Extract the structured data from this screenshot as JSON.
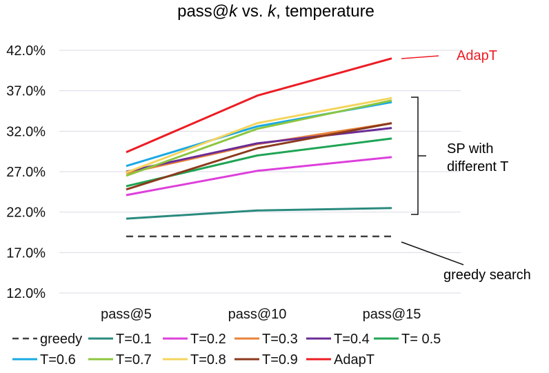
{
  "chart_data": {
    "type": "line",
    "title": "pass@k vs. k, temperature",
    "title_parts": [
      "pass@",
      "k",
      " vs. ",
      "k",
      ", temperature"
    ],
    "xlabel": "",
    "ylabel": "",
    "categories": [
      "pass@5",
      "pass@10",
      "pass@15"
    ],
    "ylim": [
      12.0,
      42.0
    ],
    "yticks": [
      12.0,
      17.0,
      22.0,
      27.0,
      32.0,
      37.0,
      42.0
    ],
    "ytick_labels": [
      "12.0%",
      "17.0%",
      "22.0%",
      "27.0%",
      "32.0%",
      "37.0%",
      "42.0%"
    ],
    "grid": true,
    "series": [
      {
        "name": "greedy",
        "legend": "greedy",
        "color": "#404040",
        "dashed": true,
        "values": [
          19.0,
          19.0,
          19.0
        ]
      },
      {
        "name": "T=0.1",
        "legend": "T=0.1",
        "color": "#2a8a7e",
        "values": [
          21.2,
          22.2,
          22.5
        ]
      },
      {
        "name": "T=0.2",
        "legend": "T=0.2",
        "color": "#dd3fdb",
        "values": [
          24.1,
          27.1,
          28.8
        ]
      },
      {
        "name": "T=0.3",
        "legend": "T=0.3",
        "color": "#e8823a",
        "values": [
          26.8,
          30.4,
          33.0
        ]
      },
      {
        "name": "T=0.4",
        "legend": "T=0.4",
        "color": "#6a2b96",
        "values": [
          27.0,
          30.5,
          32.4
        ]
      },
      {
        "name": "T= 0.5",
        "legend": "T= 0.5",
        "color": "#1fa454",
        "values": [
          25.2,
          29.0,
          31.1
        ]
      },
      {
        "name": "T=0.6",
        "legend": "T=0.6",
        "color": "#1aa9e3",
        "values": [
          27.7,
          32.6,
          35.6
        ]
      },
      {
        "name": "T=0.7",
        "legend": "T=0.7",
        "color": "#8cc63f",
        "values": [
          26.5,
          32.3,
          35.8
        ]
      },
      {
        "name": "T=0.8",
        "legend": "T=0.8",
        "color": "#f4d45c",
        "values": [
          26.9,
          33.0,
          36.1
        ]
      },
      {
        "name": "T=0.9",
        "legend": "T=0.9",
        "color": "#8b3a1c",
        "values": [
          24.8,
          29.9,
          33.0
        ]
      },
      {
        "name": "AdapT",
        "legend": "AdapT",
        "color": "#ec1c24",
        "values": [
          29.4,
          36.4,
          41.0
        ]
      }
    ],
    "annotations": {
      "adapt": "AdapT",
      "sp_line1": "SP with",
      "sp_line2": "different T",
      "greedy": "greedy search"
    }
  }
}
